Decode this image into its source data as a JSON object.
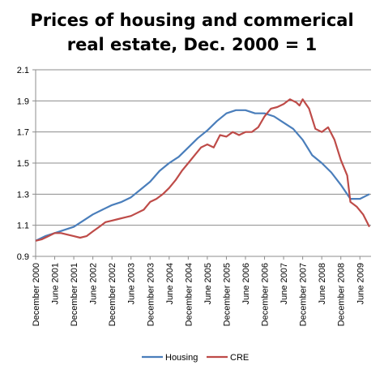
{
  "chart_data": {
    "type": "line",
    "title_line1": "Prices of housing and commerical",
    "title_line2": "real estate, Dec. 2000 = 1",
    "xlabel": "",
    "ylabel": "",
    "ylim": [
      0.9,
      2.1
    ],
    "yticks": [
      "0.9",
      "1.1",
      "1.3",
      "1.5",
      "1.7",
      "1.9",
      "2.1"
    ],
    "ytick_values": [
      0.9,
      1.1,
      1.3,
      1.5,
      1.7,
      1.9,
      2.1
    ],
    "x_range_months": [
      "December 2000",
      "June 2009"
    ],
    "xticks": [
      "December 2000",
      "June 2001",
      "December 2001",
      "June 2002",
      "December 2002",
      "June 2003",
      "December 2003",
      "June 2004",
      "December 2004",
      "June 2005",
      "December 2005",
      "June 2006",
      "December 2006",
      "June 2007",
      "December 2007",
      "June 2008",
      "December 2008",
      "June 2009"
    ],
    "grid": true,
    "legend_position": "bottom",
    "series": [
      {
        "name": "Housing",
        "color": "#4a7ebb",
        "points": [
          [
            "December 2000",
            1.0
          ],
          [
            "March 2001",
            1.03
          ],
          [
            "June 2001",
            1.05
          ],
          [
            "September 2001",
            1.07
          ],
          [
            "December 2001",
            1.09
          ],
          [
            "March 2002",
            1.13
          ],
          [
            "June 2002",
            1.17
          ],
          [
            "September 2002",
            1.2
          ],
          [
            "December 2002",
            1.23
          ],
          [
            "March 2003",
            1.25
          ],
          [
            "June 2003",
            1.28
          ],
          [
            "September 2003",
            1.33
          ],
          [
            "December 2003",
            1.38
          ],
          [
            "March 2004",
            1.45
          ],
          [
            "June 2004",
            1.5
          ],
          [
            "September 2004",
            1.54
          ],
          [
            "December 2004",
            1.6
          ],
          [
            "March 2005",
            1.66
          ],
          [
            "June 2005",
            1.71
          ],
          [
            "September 2005",
            1.77
          ],
          [
            "December 2005",
            1.82
          ],
          [
            "March 2006",
            1.84
          ],
          [
            "June 2006",
            1.84
          ],
          [
            "September 2006",
            1.82
          ],
          [
            "December 2006",
            1.82
          ],
          [
            "March 2007",
            1.8
          ],
          [
            "June 2007",
            1.76
          ],
          [
            "September 2007",
            1.72
          ],
          [
            "December 2007",
            1.65
          ],
          [
            "March 2008",
            1.55
          ],
          [
            "June 2008",
            1.5
          ],
          [
            "September 2008",
            1.44
          ],
          [
            "December 2008",
            1.36
          ],
          [
            "March 2009",
            1.27
          ],
          [
            "June 2009",
            1.27
          ],
          [
            "September 2009",
            1.3
          ]
        ]
      },
      {
        "name": "CRE",
        "color": "#be4b48",
        "points": [
          [
            "December 2000",
            1.0
          ],
          [
            "February 2001",
            1.01
          ],
          [
            "April 2001",
            1.03
          ],
          [
            "June 2001",
            1.05
          ],
          [
            "August 2001",
            1.05
          ],
          [
            "October 2001",
            1.04
          ],
          [
            "December 2001",
            1.03
          ],
          [
            "February 2002",
            1.02
          ],
          [
            "April 2002",
            1.03
          ],
          [
            "June 2002",
            1.06
          ],
          [
            "August 2002",
            1.09
          ],
          [
            "October 2002",
            1.12
          ],
          [
            "December 2002",
            1.13
          ],
          [
            "February 2003",
            1.14
          ],
          [
            "April 2003",
            1.15
          ],
          [
            "June 2003",
            1.16
          ],
          [
            "August 2003",
            1.18
          ],
          [
            "October 2003",
            1.2
          ],
          [
            "December 2003",
            1.25
          ],
          [
            "February 2004",
            1.27
          ],
          [
            "April 2004",
            1.3
          ],
          [
            "June 2004",
            1.34
          ],
          [
            "August 2004",
            1.39
          ],
          [
            "October 2004",
            1.45
          ],
          [
            "December 2004",
            1.5
          ],
          [
            "February 2005",
            1.55
          ],
          [
            "April 2005",
            1.6
          ],
          [
            "June 2005",
            1.62
          ],
          [
            "August 2005",
            1.6
          ],
          [
            "October 2005",
            1.68
          ],
          [
            "December 2005",
            1.67
          ],
          [
            "February 2006",
            1.7
          ],
          [
            "April 2006",
            1.68
          ],
          [
            "June 2006",
            1.7
          ],
          [
            "August 2006",
            1.7
          ],
          [
            "October 2006",
            1.73
          ],
          [
            "December 2006",
            1.8
          ],
          [
            "February 2007",
            1.85
          ],
          [
            "April 2007",
            1.86
          ],
          [
            "June 2007",
            1.88
          ],
          [
            "August 2007",
            1.91
          ],
          [
            "October 2007",
            1.89
          ],
          [
            "November 2007",
            1.87
          ],
          [
            "December 2007",
            1.91
          ],
          [
            "February 2008",
            1.85
          ],
          [
            "April 2008",
            1.72
          ],
          [
            "June 2008",
            1.7
          ],
          [
            "August 2008",
            1.73
          ],
          [
            "October 2008",
            1.65
          ],
          [
            "December 2008",
            1.52
          ],
          [
            "February 2009",
            1.42
          ],
          [
            "March 2009",
            1.25
          ],
          [
            "May 2009",
            1.22
          ],
          [
            "July 2009",
            1.17
          ],
          [
            "September 2009",
            1.09
          ]
        ]
      }
    ]
  }
}
